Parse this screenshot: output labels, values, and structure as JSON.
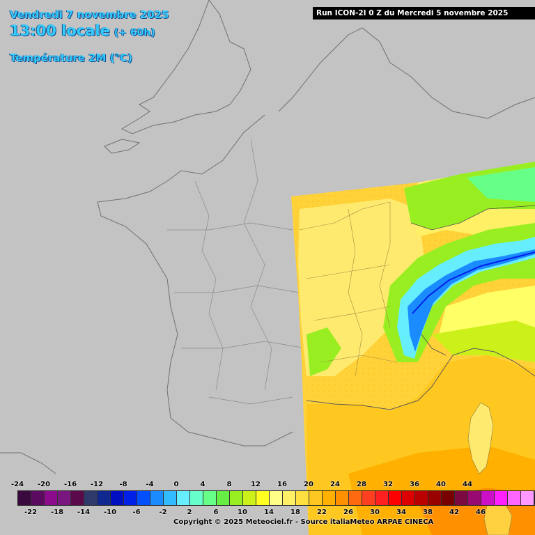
{
  "header": {
    "date_line": "Vendredi 7 novembre 2025",
    "time_line": "13:00 locale",
    "offset": "(+ 60h)",
    "parameter": "Température 2M (°C)"
  },
  "run_banner": "Run ICON-2I 0 Z du Mercredi 5 novembre 2025",
  "legend": {
    "top_labels": [
      "-24",
      "-20",
      "-16",
      "-12",
      "-8",
      "-4",
      "0",
      "4",
      "8",
      "12",
      "16",
      "20",
      "24",
      "28",
      "32",
      "36",
      "40",
      "44"
    ],
    "bottom_labels": [
      "-22",
      "-18",
      "-14",
      "-10",
      "-6",
      "-2",
      "2",
      "6",
      "10",
      "14",
      "18",
      "22",
      "26",
      "30",
      "34",
      "38",
      "42",
      "46"
    ],
    "colors": [
      "#3a0a3f",
      "#5a0a5f",
      "#8c0a8c",
      "#7a1680",
      "#5a0a4a",
      "#303a6a",
      "#102890",
      "#0010c0",
      "#0020e8",
      "#0050ff",
      "#1a8cff",
      "#33bbff",
      "#66eeff",
      "#66ffcc",
      "#66ff88",
      "#66ee44",
      "#99ee22",
      "#ccf01a",
      "#ffff22",
      "#ffff88",
      "#fff066",
      "#ffe040",
      "#ffc820",
      "#ffb000",
      "#ff9000",
      "#ff6a10",
      "#ff4020",
      "#ff2020",
      "#ff0000",
      "#dd0000",
      "#bb0000",
      "#990000",
      "#770000",
      "#7a0a40",
      "#990a70",
      "#cc10c8",
      "#ff20ff",
      "#ff66ff",
      "#ff99ff"
    ]
  },
  "copyright": "Copyright © 2025 Meteociel.fr - Source italiaMeteo ARPAE CINECA"
}
